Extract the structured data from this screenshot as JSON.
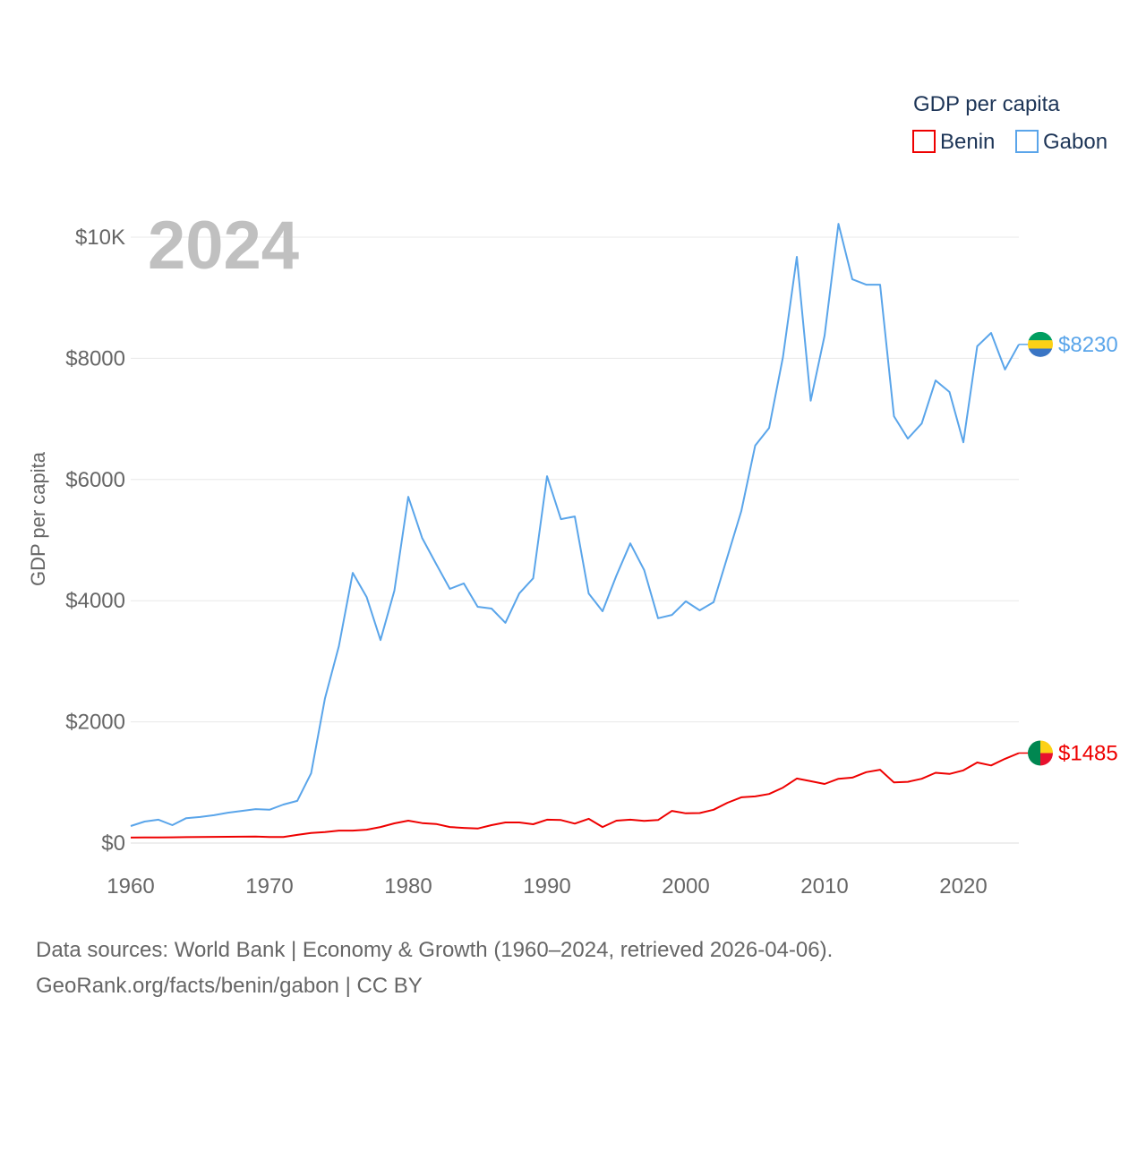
{
  "chart_data": {
    "type": "line",
    "title": "GDP per capita",
    "year_label": "2024",
    "ylabel": "GDP per capita",
    "xlabel": "",
    "xlim": [
      1960,
      2024
    ],
    "ylim": [
      0,
      10000
    ],
    "x_ticks": [
      1960,
      1970,
      1980,
      1990,
      2000,
      2010,
      2020
    ],
    "x_tick_labels": [
      "1960",
      "1970",
      "1980",
      "1990",
      "2000",
      "2010",
      "2020"
    ],
    "y_ticks": [
      0,
      2000,
      4000,
      6000,
      8000,
      10000
    ],
    "y_tick_labels": [
      "$0",
      "$2000",
      "$4000",
      "$6000",
      "$8000",
      "$10K"
    ],
    "grid": true,
    "legend_placement": "top-right",
    "x_start": 1960,
    "series": [
      {
        "name": "Benin",
        "color": "#ee0000",
        "end_label": "$1485",
        "flag": [
          "#008751",
          "#fcd116",
          "#e8112d"
        ],
        "values": [
          90,
          92,
          93,
          95,
          97,
          100,
          102,
          103,
          105,
          106,
          100,
          100,
          135,
          165,
          180,
          205,
          205,
          220,
          265,
          325,
          370,
          330,
          315,
          265,
          250,
          240,
          295,
          340,
          340,
          310,
          385,
          380,
          320,
          400,
          265,
          370,
          385,
          365,
          380,
          530,
          490,
          495,
          550,
          665,
          755,
          770,
          810,
          915,
          1065,
          1020,
          975,
          1060,
          1080,
          1170,
          1210,
          1000,
          1010,
          1060,
          1160,
          1140,
          1200,
          1330,
          1280,
          1390,
          1485
        ]
      },
      {
        "name": "Gabon",
        "color": "#5aa5ea",
        "end_label": "$8230",
        "flag": [
          "#009e60",
          "#fcd116",
          "#3a75c4"
        ],
        "values": [
          280,
          355,
          385,
          295,
          410,
          430,
          460,
          500,
          530,
          560,
          550,
          635,
          695,
          1150,
          2390,
          3250,
          4460,
          4060,
          3350,
          4165,
          5715,
          5035,
          4610,
          4195,
          4285,
          3900,
          3870,
          3635,
          4120,
          4370,
          6055,
          5345,
          5390,
          4120,
          3825,
          4415,
          4945,
          4505,
          3710,
          3765,
          3990,
          3840,
          3975,
          4725,
          5480,
          6560,
          6850,
          8020,
          9675,
          7300,
          8375,
          10220,
          9305,
          9215,
          9215,
          7045,
          6675,
          6925,
          7635,
          7445,
          6615,
          8200,
          8420,
          7815,
          8230
        ]
      }
    ]
  },
  "footer": {
    "line1": "Data sources: World Bank | Economy & Growth (1960–2024, retrieved 2026-04-06).",
    "line2": "GeoRank.org/facts/benin/gabon | CC BY"
  }
}
